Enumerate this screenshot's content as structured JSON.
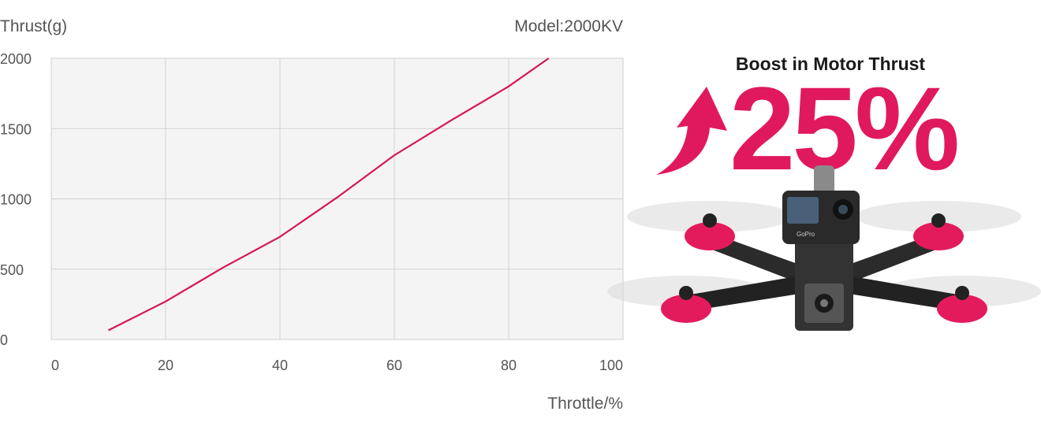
{
  "chart_data": {
    "type": "line",
    "title": "",
    "corner_note": "Model:2000KV",
    "ylabel": "Thrust(g)",
    "xlabel": "Throttle/%",
    "xlim": [
      0,
      100
    ],
    "ylim": [
      0,
      2000
    ],
    "x_ticks": [
      "0",
      "20",
      "40",
      "60",
      "80",
      "100"
    ],
    "y_ticks": [
      "0",
      "500",
      "1000",
      "1500",
      "2000"
    ],
    "grid": true,
    "series": [
      {
        "x": [
          10,
          20,
          30,
          40,
          50,
          60,
          70,
          80,
          87
        ],
        "y": [
          65,
          270,
          510,
          730,
          1010,
          1310,
          1560,
          1800,
          2000
        ],
        "color": "#d61557"
      }
    ]
  },
  "promo": {
    "title": "Boost in Motor Thrust",
    "percent": "25%",
    "accent_color": "#e0195f",
    "arrow_icon": "up-arrow-icon"
  },
  "product_image": {
    "icon": "fpv-drone-with-action-camera",
    "camera_brand": "GoPro"
  }
}
